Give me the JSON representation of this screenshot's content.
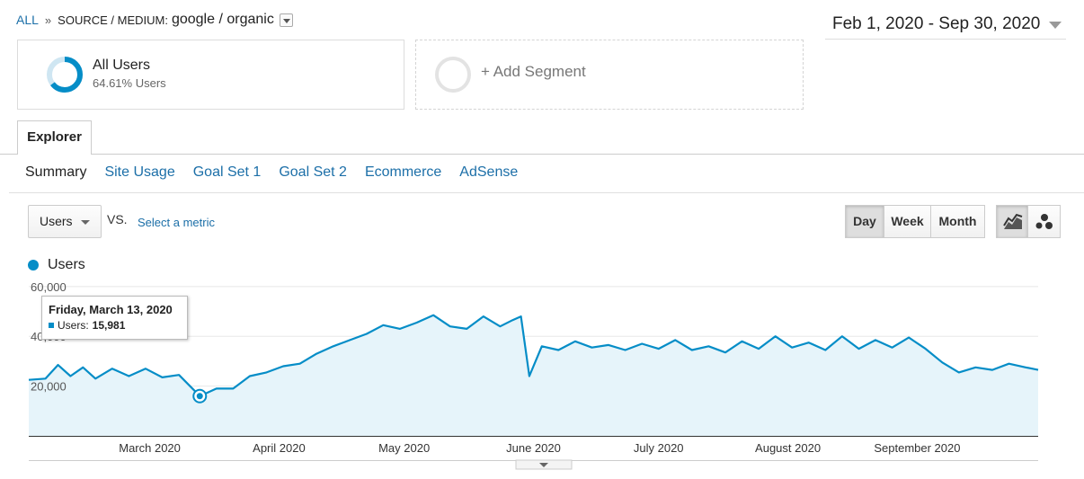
{
  "breadcrumb": {
    "all": "ALL",
    "separator": "»",
    "dimension_label": "SOURCE / MEDIUM:",
    "dimension_value": "google / organic"
  },
  "date_range": "Feb 1, 2020 - Sep 30, 2020",
  "segments": {
    "active": {
      "name": "All Users",
      "percent": "64.61% Users",
      "fill_fraction": 0.6461
    },
    "add_label": "+ Add Segment"
  },
  "tabs": {
    "explorer": "Explorer"
  },
  "subtabs": [
    {
      "label": "Summary",
      "active": true
    },
    {
      "label": "Site Usage",
      "active": false
    },
    {
      "label": "Goal Set 1",
      "active": false
    },
    {
      "label": "Goal Set 2",
      "active": false
    },
    {
      "label": "Ecommerce",
      "active": false
    },
    {
      "label": "AdSense",
      "active": false
    }
  ],
  "metric_selector": {
    "value": "Users",
    "vs": "VS.",
    "select_metric": "Select a metric"
  },
  "period_buttons": {
    "day": "Day",
    "week": "Week",
    "month": "Month",
    "selected": "day"
  },
  "view_icons": [
    "line-chart-icon",
    "motion-chart-icon"
  ],
  "colors": {
    "accent": "#058dc7",
    "area": "#e6f4fa",
    "link": "#1c6fa8"
  },
  "tooltip": {
    "date": "Friday, March 13, 2020",
    "label": "Users:",
    "value": "15,981"
  },
  "chart_data": {
    "type": "line",
    "legend": [
      {
        "name": "Users"
      }
    ],
    "y_ticks": [
      {
        "value": 60000,
        "label": "60,000"
      },
      {
        "value": 40000,
        "label": "40,000"
      },
      {
        "value": 20000,
        "label": "20,000"
      }
    ],
    "x_ticks": [
      {
        "date": "2020-03-01",
        "label": "March 2020"
      },
      {
        "date": "2020-04-01",
        "label": "April 2020"
      },
      {
        "date": "2020-05-01",
        "label": "May 2020"
      },
      {
        "date": "2020-06-01",
        "label": "June 2020"
      },
      {
        "date": "2020-07-01",
        "label": "July 2020"
      },
      {
        "date": "2020-08-01",
        "label": "August 2020"
      },
      {
        "date": "2020-09-01",
        "label": "September 2020"
      }
    ],
    "x_range": [
      "2020-02-01",
      "2020-09-30"
    ],
    "ylim": [
      0,
      65000
    ],
    "grid": true,
    "highlight": {
      "date": "2020-03-13",
      "value": 15981
    },
    "series": [
      {
        "name": "Users",
        "points": [
          [
            "2020-02-01",
            22500
          ],
          [
            "2020-02-05",
            23000
          ],
          [
            "2020-02-08",
            28500
          ],
          [
            "2020-02-11",
            24000
          ],
          [
            "2020-02-14",
            27500
          ],
          [
            "2020-02-17",
            23000
          ],
          [
            "2020-02-21",
            27000
          ],
          [
            "2020-02-25",
            24000
          ],
          [
            "2020-02-29",
            27000
          ],
          [
            "2020-03-04",
            23500
          ],
          [
            "2020-03-08",
            24500
          ],
          [
            "2020-03-13",
            15981
          ],
          [
            "2020-03-17",
            19000
          ],
          [
            "2020-03-21",
            19000
          ],
          [
            "2020-03-25",
            24000
          ],
          [
            "2020-03-29",
            25500
          ],
          [
            "2020-04-02",
            28000
          ],
          [
            "2020-04-06",
            29000
          ],
          [
            "2020-04-10",
            33000
          ],
          [
            "2020-04-14",
            36000
          ],
          [
            "2020-04-18",
            38500
          ],
          [
            "2020-04-22",
            41000
          ],
          [
            "2020-04-26",
            44500
          ],
          [
            "2020-04-30",
            43000
          ],
          [
            "2020-05-04",
            45500
          ],
          [
            "2020-05-08",
            48500
          ],
          [
            "2020-05-12",
            44000
          ],
          [
            "2020-05-16",
            43000
          ],
          [
            "2020-05-20",
            48000
          ],
          [
            "2020-05-24",
            44000
          ],
          [
            "2020-05-27",
            46500
          ],
          [
            "2020-05-29",
            48000
          ],
          [
            "2020-05-31",
            24000
          ],
          [
            "2020-06-03",
            36000
          ],
          [
            "2020-06-07",
            34500
          ],
          [
            "2020-06-11",
            38000
          ],
          [
            "2020-06-15",
            35500
          ],
          [
            "2020-06-19",
            36500
          ],
          [
            "2020-06-23",
            34500
          ],
          [
            "2020-06-27",
            37000
          ],
          [
            "2020-07-01",
            35000
          ],
          [
            "2020-07-05",
            38500
          ],
          [
            "2020-07-09",
            34500
          ],
          [
            "2020-07-13",
            36000
          ],
          [
            "2020-07-17",
            33500
          ],
          [
            "2020-07-21",
            38000
          ],
          [
            "2020-07-25",
            35000
          ],
          [
            "2020-07-29",
            40000
          ],
          [
            "2020-08-02",
            35500
          ],
          [
            "2020-08-06",
            37500
          ],
          [
            "2020-08-10",
            34500
          ],
          [
            "2020-08-14",
            40000
          ],
          [
            "2020-08-18",
            35000
          ],
          [
            "2020-08-22",
            38500
          ],
          [
            "2020-08-26",
            35500
          ],
          [
            "2020-08-30",
            39500
          ],
          [
            "2020-09-03",
            35000
          ],
          [
            "2020-09-07",
            29500
          ],
          [
            "2020-09-11",
            25500
          ],
          [
            "2020-09-15",
            27500
          ],
          [
            "2020-09-19",
            26500
          ],
          [
            "2020-09-23",
            29000
          ],
          [
            "2020-09-27",
            27500
          ],
          [
            "2020-09-30",
            26500
          ]
        ]
      }
    ]
  }
}
